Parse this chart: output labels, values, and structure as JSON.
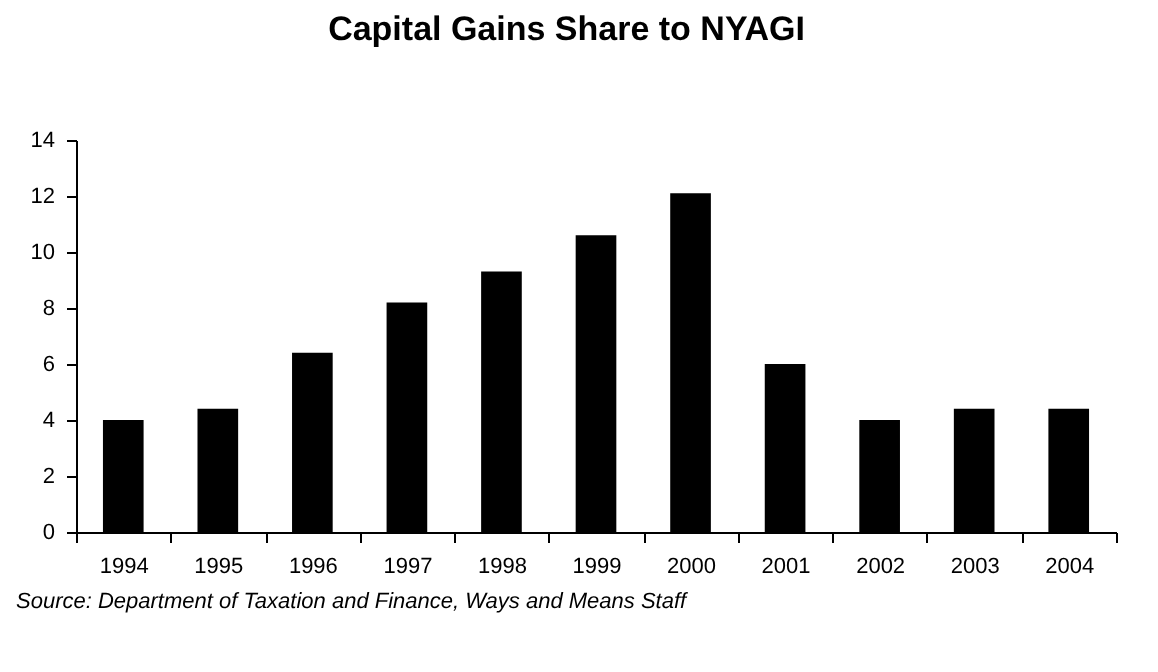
{
  "chart_data": {
    "type": "bar",
    "title": "Capital Gains Share to NYAGI",
    "categories": [
      "1994",
      "1995",
      "1996",
      "1997",
      "1998",
      "1999",
      "2000",
      "2001",
      "2002",
      "2003",
      "2004"
    ],
    "values": [
      4.0,
      4.4,
      6.4,
      8.2,
      9.3,
      10.6,
      12.1,
      6.0,
      4.0,
      4.4,
      4.4
    ],
    "color": "#000000",
    "ylim": [
      0,
      14
    ],
    "yticks": [
      0,
      2,
      4,
      6,
      8,
      10,
      12,
      14
    ],
    "grid": false,
    "annotations": [
      "Source: Department of Taxation and Finance, Ways and Means Staff"
    ]
  }
}
